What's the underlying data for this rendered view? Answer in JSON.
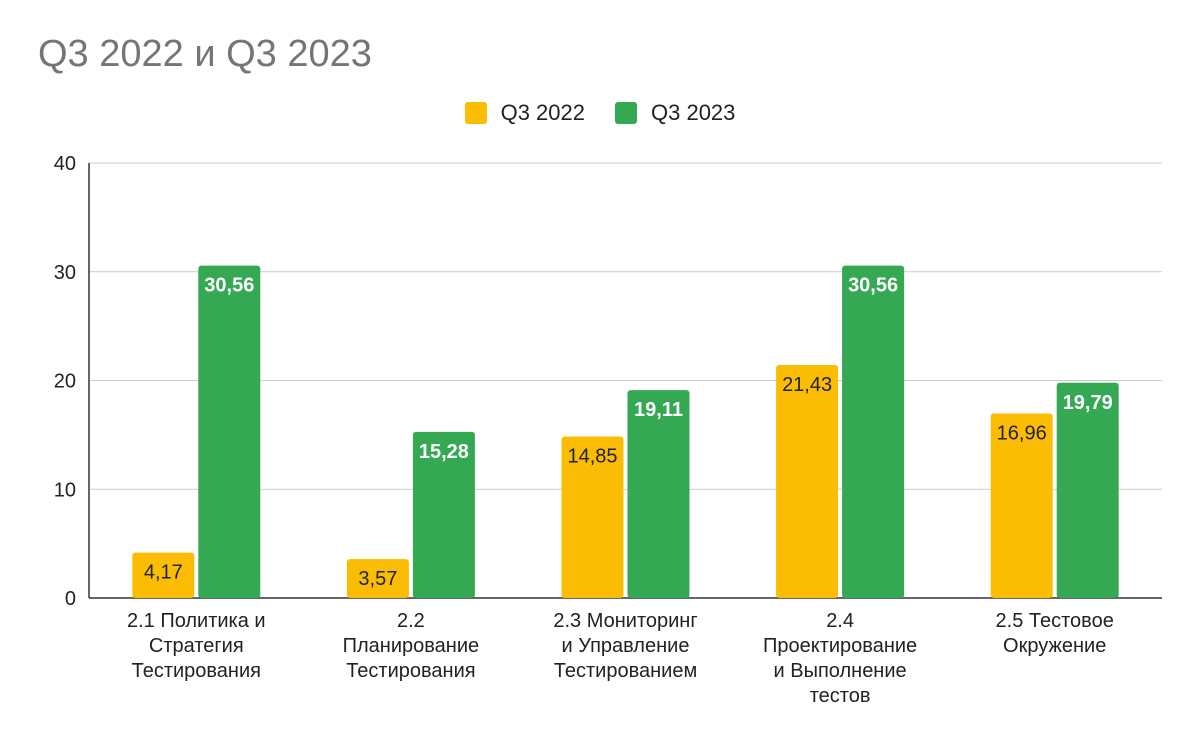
{
  "chart_data": {
    "type": "bar",
    "title": "Q3 2022 и Q3 2023",
    "xlabel": "",
    "ylabel": "",
    "ylim": [
      0,
      40
    ],
    "yticks": [
      0,
      10,
      20,
      30,
      40
    ],
    "grid": true,
    "legend_position": "top-center",
    "categories": [
      [
        "2.1 Политика и",
        "Стратегия",
        "Тестирования"
      ],
      [
        "2.2",
        "Планирование",
        "Тестирования"
      ],
      [
        "2.3 Мониторинг",
        "и Управление",
        "Тестированием"
      ],
      [
        "2.4",
        "Проектирование",
        "и Выполнение",
        "тестов"
      ],
      [
        "2.5 Тестовое",
        "Окружение"
      ]
    ],
    "series": [
      {
        "name": "Q3 2022",
        "color": "#fbbc04",
        "label_color": "#222222",
        "values": [
          4.17,
          3.57,
          14.85,
          21.43,
          16.96
        ],
        "labels": [
          "4,17",
          "3,57",
          "14,85",
          "21,43",
          "16,96"
        ]
      },
      {
        "name": "Q3 2023",
        "color": "#34a853",
        "label_color": "#ffffff",
        "values": [
          30.56,
          15.28,
          19.11,
          30.56,
          19.79
        ],
        "labels": [
          "30,56",
          "15,28",
          "19,11",
          "30,56",
          "19,79"
        ]
      }
    ]
  }
}
